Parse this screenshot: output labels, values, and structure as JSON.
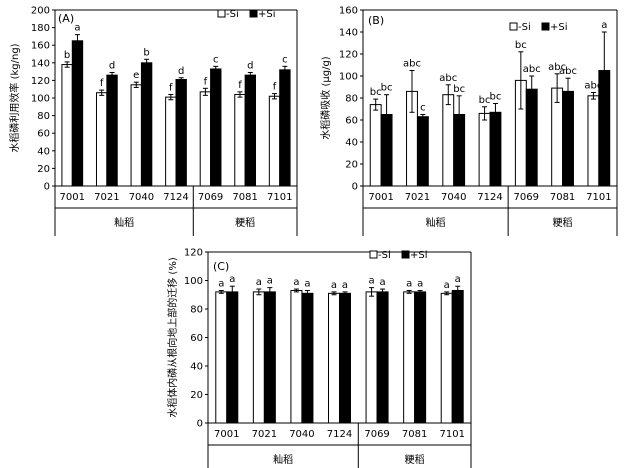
{
  "colors": {
    "minus_si": "#ffffff",
    "plus_si": "#000000",
    "axis": "#000000"
  },
  "legend": {
    "minus": "-Si",
    "plus": "+Si"
  },
  "chart_data": [
    {
      "type": "bar",
      "panel": "(A)",
      "ylabel": "水稻磷利用效率 (kg/ng)",
      "ylim": [
        0,
        200
      ],
      "yticks": [
        0,
        20,
        40,
        60,
        80,
        100,
        120,
        140,
        160,
        180,
        200
      ],
      "categories": [
        "7001",
        "7021",
        "7040",
        "7124",
        "7069",
        "7081",
        "7101"
      ],
      "groups": [
        {
          "label": "籼稻",
          "count": 4
        },
        {
          "label": "粳稻",
          "count": 3
        }
      ],
      "series": [
        {
          "name": "-Si",
          "values": [
            138,
            106,
            115,
            101,
            107,
            104,
            102
          ],
          "errors": [
            3,
            3,
            3,
            3,
            4,
            3,
            3
          ],
          "letters": [
            "b",
            "f",
            "e",
            "f",
            "f",
            "f",
            "f"
          ]
        },
        {
          "name": "+Si",
          "values": [
            165,
            126,
            140,
            121,
            133,
            126,
            132
          ],
          "errors": [
            7,
            3,
            4,
            2,
            3,
            3,
            4
          ],
          "letters": [
            "a",
            "d",
            "b",
            "d",
            "c",
            "d",
            "c"
          ]
        }
      ]
    },
    {
      "type": "bar",
      "panel": "(B)",
      "ylabel": "水稻磷吸收 (μg/g)",
      "ylim": [
        0,
        160
      ],
      "yticks": [
        0,
        20,
        40,
        60,
        80,
        100,
        120,
        140,
        160
      ],
      "categories": [
        "7001",
        "7021",
        "7040",
        "7124",
        "7069",
        "7081",
        "7101"
      ],
      "groups": [
        {
          "label": "籼稻",
          "count": 4
        },
        {
          "label": "粳稻",
          "count": 3
        }
      ],
      "series": [
        {
          "name": "-Si",
          "values": [
            74,
            86,
            83,
            66,
            96,
            89,
            82
          ],
          "errors": [
            5,
            19,
            9,
            6,
            26,
            13,
            3
          ],
          "letters": [
            "bc",
            "abc",
            "abc",
            "bc",
            "bc",
            "abc",
            "abc"
          ]
        },
        {
          "name": "+Si",
          "values": [
            65,
            63,
            65,
            67,
            88,
            86,
            105
          ],
          "errors": [
            18,
            2,
            17,
            8,
            12,
            12,
            35
          ],
          "letters": [
            "bc",
            "c",
            "bc",
            "bc",
            "abc",
            "abc",
            "a"
          ]
        }
      ]
    },
    {
      "type": "bar",
      "panel": "(C)",
      "ylabel": "水稻体内磷从根向地上部的迁移 (%)",
      "ylim": [
        0,
        120
      ],
      "yticks": [
        0,
        20,
        40,
        60,
        80,
        100,
        120
      ],
      "categories": [
        "7001",
        "7021",
        "7040",
        "7124",
        "7069",
        "7081",
        "7101"
      ],
      "groups": [
        {
          "label": "籼稻",
          "count": 4
        },
        {
          "label": "粳稻",
          "count": 3
        }
      ],
      "series": [
        {
          "name": "-Si",
          "values": [
            92,
            92,
            93,
            91,
            92,
            92,
            91
          ],
          "errors": [
            1,
            2,
            1,
            1,
            3,
            1,
            1
          ],
          "letters": [
            "a",
            "a",
            "a",
            "a",
            "a",
            "a",
            "a"
          ]
        },
        {
          "name": "+Si",
          "values": [
            92,
            92,
            91,
            91,
            92,
            92,
            93
          ],
          "errors": [
            4,
            3,
            2,
            1,
            2,
            1,
            3
          ],
          "letters": [
            "a",
            "a",
            "a",
            "a",
            "a",
            "a",
            "a"
          ]
        }
      ]
    }
  ]
}
